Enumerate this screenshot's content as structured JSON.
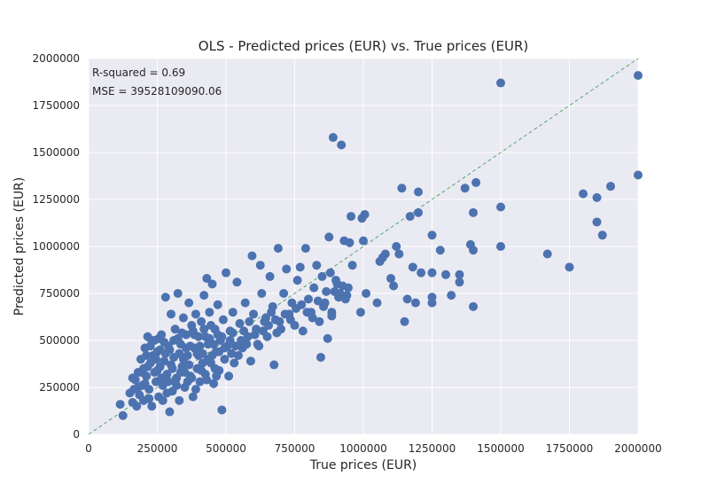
{
  "colors": {
    "plot_background": "#eaeaf2",
    "grid": "#ffffff",
    "points": "#4c72b0",
    "reference_line": "#55a868",
    "text": "#262626"
  },
  "chart_data": {
    "type": "scatter",
    "title": "OLS - Predicted prices (EUR) vs. True prices (EUR)",
    "xlabel": "True prices (EUR)",
    "ylabel": "Predicted prices (EUR)",
    "xlim": [
      0,
      2000000
    ],
    "ylim": [
      0,
      2000000
    ],
    "x_ticks": [
      0,
      250000,
      500000,
      750000,
      1000000,
      1250000,
      1500000,
      1750000,
      2000000
    ],
    "x_tick_labels": [
      "0",
      "250000",
      "500000",
      "750000",
      "1000000",
      "1250000",
      "1500000",
      "1750000",
      "2000000"
    ],
    "y_ticks": [
      0,
      250000,
      500000,
      750000,
      1000000,
      1250000,
      1500000,
      1750000,
      2000000
    ],
    "y_tick_labels": [
      "0",
      "250000",
      "500000",
      "750000",
      "1000000",
      "1250000",
      "1500000",
      "1750000",
      "2000000"
    ],
    "grid": true,
    "reference_line": {
      "style": "dashed",
      "from": [
        0,
        0
      ],
      "to": [
        2000000,
        2000000
      ]
    },
    "annotations": [
      "R-squared = 0.69",
      "MSE = 39528109090.06"
    ],
    "points": [
      [
        115000,
        160000
      ],
      [
        125000,
        100000
      ],
      [
        150000,
        220000
      ],
      [
        160000,
        170000
      ],
      [
        165000,
        240000
      ],
      [
        170000,
        290000
      ],
      [
        175000,
        150000
      ],
      [
        180000,
        330000
      ],
      [
        185000,
        210000
      ],
      [
        190000,
        400000
      ],
      [
        195000,
        260000
      ],
      [
        200000,
        180000
      ],
      [
        205000,
        460000
      ],
      [
        210000,
        310000
      ],
      [
        215000,
        520000
      ],
      [
        220000,
        240000
      ],
      [
        225000,
        380000
      ],
      [
        230000,
        150000
      ],
      [
        235000,
        420000
      ],
      [
        240000,
        500000
      ],
      [
        245000,
        280000
      ],
      [
        250000,
        340000
      ],
      [
        255000,
        200000
      ],
      [
        260000,
        450000
      ],
      [
        265000,
        530000
      ],
      [
        270000,
        260000
      ],
      [
        275000,
        390000
      ],
      [
        280000,
        730000
      ],
      [
        285000,
        320000
      ],
      [
        290000,
        470000
      ],
      [
        295000,
        120000
      ],
      [
        300000,
        640000
      ],
      [
        305000,
        230000
      ],
      [
        310000,
        410000
      ],
      [
        315000,
        560000
      ],
      [
        320000,
        300000
      ],
      [
        325000,
        750000
      ],
      [
        330000,
        180000
      ],
      [
        335000,
        480000
      ],
      [
        340000,
        360000
      ],
      [
        345000,
        620000
      ],
      [
        350000,
        250000
      ],
      [
        355000,
        530000
      ],
      [
        360000,
        420000
      ],
      [
        365000,
        700000
      ],
      [
        370000,
        310000
      ],
      [
        375000,
        580000
      ],
      [
        380000,
        200000
      ],
      [
        385000,
        460000
      ],
      [
        390000,
        640000
      ],
      [
        395000,
        350000
      ],
      [
        400000,
        520000
      ],
      [
        405000,
        280000
      ],
      [
        410000,
        600000
      ],
      [
        415000,
        430000
      ],
      [
        420000,
        740000
      ],
      [
        425000,
        320000
      ],
      [
        430000,
        830000
      ],
      [
        435000,
        480000
      ],
      [
        440000,
        650000
      ],
      [
        445000,
        380000
      ],
      [
        450000,
        800000
      ],
      [
        455000,
        270000
      ],
      [
        460000,
        560000
      ],
      [
        465000,
        440000
      ],
      [
        470000,
        690000
      ],
      [
        475000,
        340000
      ],
      [
        480000,
        500000
      ],
      [
        485000,
        130000
      ],
      [
        490000,
        610000
      ],
      [
        495000,
        400000
      ],
      [
        500000,
        860000
      ],
      [
        505000,
        470000
      ],
      [
        510000,
        310000
      ],
      [
        515000,
        550000
      ],
      [
        520000,
        430000
      ],
      [
        525000,
        650000
      ],
      [
        530000,
        380000
      ],
      [
        540000,
        810000
      ],
      [
        550000,
        590000
      ],
      [
        560000,
        460000
      ],
      [
        570000,
        700000
      ],
      [
        580000,
        520000
      ],
      [
        590000,
        390000
      ],
      [
        595000,
        950000
      ],
      [
        600000,
        640000
      ],
      [
        610000,
        560000
      ],
      [
        620000,
        470000
      ],
      [
        625000,
        900000
      ],
      [
        630000,
        750000
      ],
      [
        640000,
        600000
      ],
      [
        650000,
        520000
      ],
      [
        660000,
        840000
      ],
      [
        670000,
        680000
      ],
      [
        675000,
        370000
      ],
      [
        680000,
        610000
      ],
      [
        690000,
        990000
      ],
      [
        700000,
        560000
      ],
      [
        710000,
        750000
      ],
      [
        720000,
        880000
      ],
      [
        730000,
        640000
      ],
      [
        740000,
        700000
      ],
      [
        750000,
        580000
      ],
      [
        760000,
        820000
      ],
      [
        770000,
        890000
      ],
      [
        780000,
        550000
      ],
      [
        790000,
        990000
      ],
      [
        800000,
        720000
      ],
      [
        810000,
        650000
      ],
      [
        820000,
        780000
      ],
      [
        830000,
        900000
      ],
      [
        840000,
        600000
      ],
      [
        845000,
        410000
      ],
      [
        850000,
        840000
      ],
      [
        860000,
        700000
      ],
      [
        870000,
        510000
      ],
      [
        875000,
        1050000
      ],
      [
        880000,
        860000
      ],
      [
        885000,
        650000
      ],
      [
        890000,
        1580000
      ],
      [
        895000,
        760000
      ],
      [
        900000,
        820000
      ],
      [
        910000,
        730000
      ],
      [
        920000,
        1540000
      ],
      [
        925000,
        790000
      ],
      [
        930000,
        1030000
      ],
      [
        940000,
        740000
      ],
      [
        950000,
        1020000
      ],
      [
        955000,
        1160000
      ],
      [
        960000,
        900000
      ],
      [
        990000,
        650000
      ],
      [
        995000,
        1150000
      ],
      [
        1000000,
        1030000
      ],
      [
        1005000,
        1170000
      ],
      [
        1010000,
        750000
      ],
      [
        1050000,
        700000
      ],
      [
        1060000,
        920000
      ],
      [
        1070000,
        940000
      ],
      [
        1080000,
        960000
      ],
      [
        1100000,
        830000
      ],
      [
        1110000,
        790000
      ],
      [
        1120000,
        1000000
      ],
      [
        1130000,
        960000
      ],
      [
        1140000,
        1310000
      ],
      [
        1150000,
        600000
      ],
      [
        1160000,
        720000
      ],
      [
        1170000,
        1160000
      ],
      [
        1180000,
        890000
      ],
      [
        1190000,
        700000
      ],
      [
        1200000,
        1290000
      ],
      [
        1200000,
        1180000
      ],
      [
        1210000,
        860000
      ],
      [
        1250000,
        860000
      ],
      [
        1250000,
        1060000
      ],
      [
        1250000,
        730000
      ],
      [
        1250000,
        700000
      ],
      [
        1280000,
        980000
      ],
      [
        1300000,
        850000
      ],
      [
        1320000,
        740000
      ],
      [
        1350000,
        850000
      ],
      [
        1350000,
        810000
      ],
      [
        1370000,
        1310000
      ],
      [
        1390000,
        1010000
      ],
      [
        1400000,
        1180000
      ],
      [
        1400000,
        680000
      ],
      [
        1410000,
        1340000
      ],
      [
        1400000,
        980000
      ],
      [
        1500000,
        1870000
      ],
      [
        1500000,
        1210000
      ],
      [
        1500000,
        1000000
      ],
      [
        1670000,
        960000
      ],
      [
        1750000,
        890000
      ],
      [
        1800000,
        1280000
      ],
      [
        1850000,
        1260000
      ],
      [
        1850000,
        1130000
      ],
      [
        1870000,
        1060000
      ],
      [
        1900000,
        1320000
      ],
      [
        2000000,
        1380000
      ],
      [
        2000000,
        1910000
      ],
      [
        160000,
        300000
      ],
      [
        180000,
        250000
      ],
      [
        200000,
        350000
      ],
      [
        210000,
        420000
      ],
      [
        220000,
        190000
      ],
      [
        230000,
        500000
      ],
      [
        240000,
        330000
      ],
      [
        250000,
        440000
      ],
      [
        260000,
        360000
      ],
      [
        270000,
        180000
      ],
      [
        280000,
        430000
      ],
      [
        290000,
        280000
      ],
      [
        300000,
        370000
      ],
      [
        310000,
        500000
      ],
      [
        320000,
        260000
      ],
      [
        330000,
        430000
      ],
      [
        340000,
        540000
      ],
      [
        350000,
        330000
      ],
      [
        360000,
        280000
      ],
      [
        370000,
        470000
      ],
      [
        380000,
        550000
      ],
      [
        390000,
        240000
      ],
      [
        400000,
        420000
      ],
      [
        410000,
        340000
      ],
      [
        420000,
        560000
      ],
      [
        430000,
        290000
      ],
      [
        440000,
        510000
      ],
      [
        450000,
        420000
      ],
      [
        460000,
        350000
      ],
      [
        470000,
        530000
      ],
      [
        190000,
        330000
      ],
      [
        205000,
        270000
      ],
      [
        215000,
        360000
      ],
      [
        225000,
        470000
      ],
      [
        245000,
        400000
      ],
      [
        255000,
        510000
      ],
      [
        265000,
        300000
      ],
      [
        275000,
        490000
      ],
      [
        285000,
        220000
      ],
      [
        295000,
        450000
      ],
      [
        305000,
        350000
      ],
      [
        315000,
        280000
      ],
      [
        325000,
        510000
      ],
      [
        335000,
        330000
      ],
      [
        345000,
        400000
      ],
      [
        355000,
        460000
      ],
      [
        365000,
        370000
      ],
      [
        375000,
        300000
      ],
      [
        385000,
        530000
      ],
      [
        395000,
        430000
      ],
      [
        405000,
        470000
      ],
      [
        415000,
        380000
      ],
      [
        425000,
        520000
      ],
      [
        435000,
        400000
      ],
      [
        445000,
        580000
      ],
      [
        455000,
        480000
      ],
      [
        465000,
        310000
      ],
      [
        475000,
        440000
      ],
      [
        485000,
        520000
      ],
      [
        495000,
        460000
      ],
      [
        515000,
        500000
      ],
      [
        525000,
        540000
      ],
      [
        535000,
        470000
      ],
      [
        545000,
        420000
      ],
      [
        555000,
        500000
      ],
      [
        565000,
        550000
      ],
      [
        575000,
        480000
      ],
      [
        585000,
        600000
      ],
      [
        605000,
        530000
      ],
      [
        615000,
        480000
      ],
      [
        635000,
        550000
      ],
      [
        645000,
        620000
      ],
      [
        655000,
        580000
      ],
      [
        665000,
        650000
      ],
      [
        685000,
        540000
      ],
      [
        695000,
        600000
      ],
      [
        715000,
        640000
      ],
      [
        735000,
        610000
      ],
      [
        755000,
        670000
      ],
      [
        775000,
        690000
      ],
      [
        795000,
        650000
      ],
      [
        815000,
        620000
      ],
      [
        835000,
        710000
      ],
      [
        855000,
        680000
      ],
      [
        865000,
        760000
      ],
      [
        885000,
        630000
      ],
      [
        905000,
        800000
      ],
      [
        915000,
        750000
      ],
      [
        935000,
        720000
      ],
      [
        945000,
        780000
      ]
    ]
  }
}
